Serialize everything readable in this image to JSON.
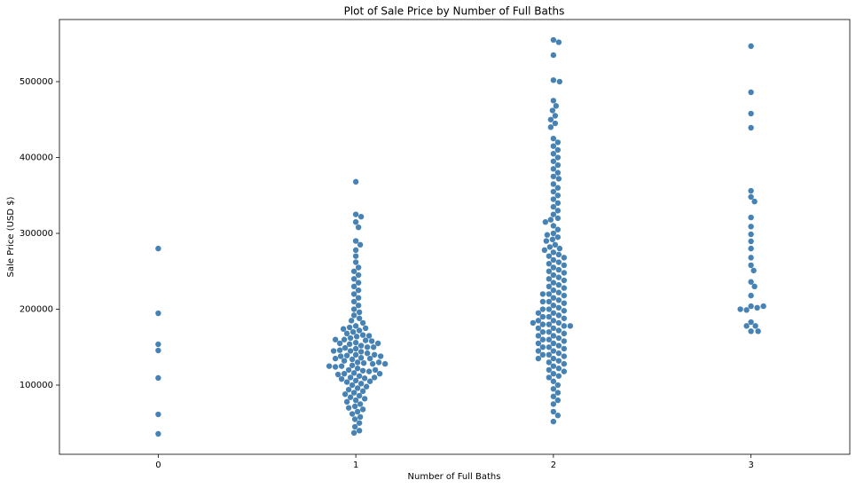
{
  "chart_data": {
    "type": "swarm",
    "title": "Plot of Sale Price by Number of Full Baths",
    "x_label": "Number of Full Baths",
    "y_label": "Sale Price (USD $)",
    "categories": [
      "0",
      "1",
      "2",
      "3"
    ],
    "color": "#4682b4",
    "ylim": [
      8800,
      581900
    ],
    "yticks": [
      100000,
      200000,
      300000,
      400000,
      500000
    ],
    "values": [
      [
        280000,
        194700,
        153800,
        145600,
        109400,
        61400,
        35700
      ],
      [
        368000,
        325000,
        322000,
        315000,
        308000,
        290000,
        285000,
        278000,
        270000,
        262000,
        255000,
        250000,
        245000,
        240000,
        235000,
        230000,
        225000,
        220000,
        215000,
        210000,
        205000,
        200000,
        196000,
        192000,
        188000,
        185000,
        182000,
        178000,
        176000,
        175000,
        174000,
        172000,
        170000,
        168000,
        166000,
        165000,
        164000,
        162000,
        160000,
        159000,
        158000,
        156000,
        155000,
        154000,
        152000,
        150000,
        149000,
        148000,
        146000,
        145000,
        144000,
        142000,
        140000,
        139000,
        138000,
        136000,
        135000,
        134000,
        132000,
        130000,
        129000,
        128000,
        126000,
        125000,
        124000,
        122000,
        120000,
        119000,
        118000,
        116000,
        115000,
        114000,
        112000,
        110000,
        109000,
        108000,
        106000,
        105000,
        104000,
        102000,
        100000,
        98000,
        96000,
        94000,
        92000,
        90000,
        88000,
        86000,
        84000,
        82000,
        80000,
        78000,
        75000,
        72000,
        70000,
        68000,
        65000,
        62000,
        58000,
        55000,
        50000,
        45000,
        40000,
        37000,
        160000,
        150000,
        140000,
        130000,
        120000,
        110000,
        135000,
        145000,
        125000,
        115000,
        155000,
        128000,
        138000
      ],
      [
        555000,
        552000,
        535000,
        502000,
        500000,
        475000,
        468000,
        462000,
        455000,
        450000,
        445000,
        440000,
        425000,
        420000,
        415000,
        410000,
        405000,
        400000,
        395000,
        390000,
        385000,
        380000,
        375000,
        372000,
        365000,
        360000,
        355000,
        350000,
        345000,
        340000,
        335000,
        330000,
        325000,
        320000,
        318000,
        315000,
        310000,
        305000,
        300000,
        298000,
        295000,
        292000,
        290000,
        285000,
        282000,
        280000,
        278000,
        275000,
        272000,
        270000,
        268000,
        265000,
        262000,
        260000,
        258000,
        255000,
        252000,
        250000,
        248000,
        245000,
        242000,
        240000,
        238000,
        235000,
        232000,
        230000,
        228000,
        225000,
        222000,
        220000,
        218000,
        215000,
        212000,
        210000,
        208000,
        205000,
        202000,
        200000,
        198000,
        195000,
        192000,
        190000,
        188000,
        185000,
        182000,
        180000,
        178000,
        175000,
        172000,
        170000,
        168000,
        165000,
        162000,
        160000,
        158000,
        155000,
        152000,
        150000,
        148000,
        145000,
        142000,
        140000,
        138000,
        135000,
        132000,
        130000,
        128000,
        125000,
        122000,
        120000,
        118000,
        115000,
        112000,
        110000,
        105000,
        100000,
        95000,
        90000,
        85000,
        80000,
        75000,
        65000,
        60000,
        52000,
        200000,
        190000,
        180000,
        170000,
        160000,
        150000,
        140000,
        185000,
        175000,
        165000,
        210000,
        220000,
        195000,
        155000,
        145000,
        135000,
        178000,
        182000
      ],
      [
        546800,
        486000,
        457900,
        439200,
        356100,
        348000,
        342000,
        321000,
        309000,
        298800,
        289500,
        280000,
        268000,
        258000,
        251000,
        236000,
        230000,
        218000,
        204000,
        202000,
        199000,
        183000,
        178000,
        171000,
        200000,
        178000,
        171000,
        204000
      ]
    ]
  }
}
